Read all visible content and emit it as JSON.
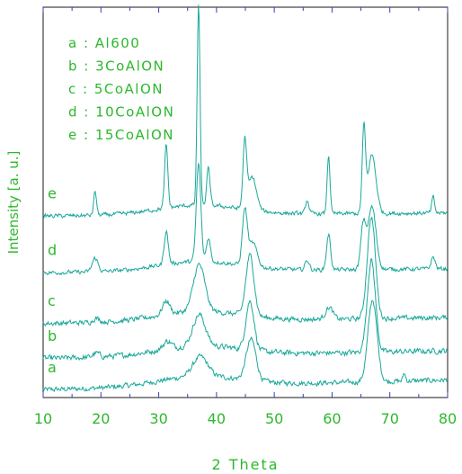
{
  "chart_data": {
    "type": "line",
    "title": "",
    "xlabel": "2 Theta",
    "ylabel": "Intensity [a. u.]",
    "xlim": [
      10,
      80
    ],
    "xticks": [
      10,
      20,
      30,
      40,
      50,
      60,
      70,
      80
    ],
    "y_ticks_shown": false,
    "grid": false,
    "legend_position": "top-left",
    "colors": {
      "line": "#1aa89a",
      "text": "#2db82d",
      "axis": "#1a1a1a",
      "tick": "#3a3ac8"
    },
    "legend": [
      "a : Al600",
      "b : 3CoAlON",
      "c : 5CoAlON",
      "d : 10CoAlON",
      "e : 15CoAlON"
    ],
    "series": [
      {
        "label": "a",
        "baseline": 0.02,
        "noise": 0.01,
        "tilt": 0.025,
        "peaks": [
          [
            37.2,
            0.05,
            1.8
          ],
          [
            46.0,
            0.105,
            1.2
          ],
          [
            67.0,
            0.21,
            1.1
          ],
          [
            72.5,
            0.02,
            0.3
          ]
        ]
      },
      {
        "label": "b",
        "baseline": 0.1,
        "noise": 0.011,
        "tilt": 0.02,
        "peaks": [
          [
            19.2,
            0.01,
            0.8
          ],
          [
            31.5,
            0.02,
            1.0
          ],
          [
            37.0,
            0.08,
            1.5
          ],
          [
            45.8,
            0.125,
            1.0
          ],
          [
            66.8,
            0.235,
            1.0
          ]
        ]
      },
      {
        "label": "c",
        "baseline": 0.19,
        "noise": 0.01,
        "tilt": 0.015,
        "peaks": [
          [
            19.2,
            0.01,
            0.8
          ],
          [
            31.3,
            0.035,
            0.9
          ],
          [
            37.0,
            0.12,
            1.4
          ],
          [
            45.8,
            0.155,
            1.0
          ],
          [
            59.5,
            0.03,
            0.9
          ],
          [
            66.8,
            0.26,
            1.0
          ]
        ]
      },
      {
        "label": "d",
        "baseline": 0.32,
        "noise": 0.008,
        "tilt": 0.01,
        "peaks": [
          [
            19.0,
            0.035,
            0.7
          ],
          [
            31.3,
            0.085,
            0.5
          ],
          [
            36.9,
            0.25,
            0.55
          ],
          [
            38.6,
            0.06,
            0.5
          ],
          [
            44.9,
            0.14,
            0.6
          ],
          [
            46.3,
            0.06,
            1.0
          ],
          [
            55.7,
            0.025,
            0.5
          ],
          [
            59.4,
            0.09,
            0.5
          ],
          [
            65.4,
            0.11,
            0.6
          ],
          [
            66.9,
            0.16,
            1.0
          ],
          [
            77.5,
            0.03,
            0.5
          ]
        ]
      },
      {
        "label": "e",
        "baseline": 0.465,
        "noise": 0.008,
        "tilt": 0.008,
        "peaks": [
          [
            19.0,
            0.06,
            0.35
          ],
          [
            31.3,
            0.16,
            0.4
          ],
          [
            36.9,
            0.515,
            0.35
          ],
          [
            38.6,
            0.095,
            0.4
          ],
          [
            44.9,
            0.17,
            0.45
          ],
          [
            46.2,
            0.085,
            1.0
          ],
          [
            55.7,
            0.035,
            0.4
          ],
          [
            59.4,
            0.15,
            0.35
          ],
          [
            65.5,
            0.21,
            0.4
          ],
          [
            66.9,
            0.15,
            1.0
          ],
          [
            77.5,
            0.04,
            0.35
          ]
        ]
      }
    ]
  }
}
